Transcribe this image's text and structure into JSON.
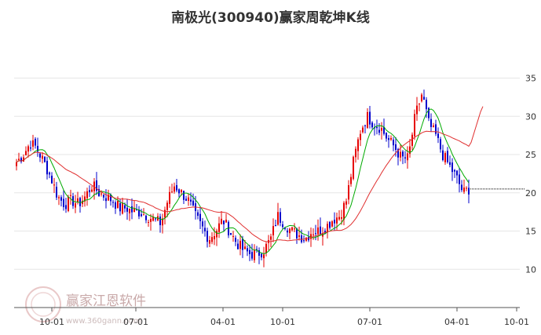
{
  "title": "南极光(300940)赢家周乾坤K线",
  "watermark": {
    "name": "赢家江恩软件",
    "url": "www.360gann.com"
  },
  "colors": {
    "up": "#e60000",
    "down": "#0000cc",
    "ma_short": "#00aa00",
    "ma_long": "#e03030",
    "grid": "#e6e6e6",
    "last_price_line": "#000000"
  },
  "chart_data": {
    "type": "candlestick",
    "title": "南极光(300940)赢家周乾坤K线",
    "ylim": [
      5,
      37
    ],
    "y_ticks": [
      10,
      15,
      20,
      25,
      30,
      35
    ],
    "x_ticks": [
      "10-01",
      "07-01",
      "04-01",
      "10-01",
      "07-01",
      "04-01",
      "10-01"
    ],
    "grid": true,
    "last_price": 20.5,
    "close_path": [
      [
        0,
        24
      ],
      [
        5,
        25
      ],
      [
        10,
        26.5
      ],
      [
        14,
        26
      ],
      [
        20,
        24
      ],
      [
        25,
        22
      ],
      [
        30,
        19.5
      ],
      [
        35,
        18.5
      ],
      [
        40,
        19
      ],
      [
        45,
        18.5
      ],
      [
        50,
        19.5
      ],
      [
        55,
        21
      ],
      [
        60,
        20
      ],
      [
        65,
        19.5
      ],
      [
        70,
        19
      ],
      [
        75,
        18
      ],
      [
        80,
        18
      ],
      [
        85,
        17.5
      ],
      [
        90,
        17.5
      ],
      [
        95,
        17
      ],
      [
        100,
        16.5
      ],
      [
        105,
        16
      ],
      [
        110,
        19
      ],
      [
        115,
        21
      ],
      [
        120,
        20
      ],
      [
        125,
        19
      ],
      [
        130,
        17
      ],
      [
        135,
        15.5
      ],
      [
        140,
        14
      ],
      [
        145,
        15
      ],
      [
        150,
        16.5
      ],
      [
        155,
        15
      ],
      [
        160,
        13.5
      ],
      [
        165,
        12.5
      ],
      [
        170,
        12
      ],
      [
        175,
        12
      ],
      [
        180,
        12.5
      ],
      [
        185,
        14
      ],
      [
        190,
        17
      ],
      [
        195,
        16
      ],
      [
        200,
        15
      ],
      [
        205,
        14.5
      ],
      [
        210,
        14
      ],
      [
        215,
        15
      ],
      [
        220,
        15
      ],
      [
        225,
        15.5
      ],
      [
        230,
        16.5
      ],
      [
        235,
        17
      ],
      [
        240,
        19
      ],
      [
        245,
        24
      ],
      [
        250,
        28
      ],
      [
        255,
        30
      ],
      [
        260,
        29
      ],
      [
        265,
        28.5
      ],
      [
        270,
        27
      ],
      [
        275,
        26
      ],
      [
        280,
        24.5
      ],
      [
        285,
        24.5
      ],
      [
        290,
        30
      ],
      [
        295,
        33
      ],
      [
        300,
        29
      ],
      [
        305,
        27.5
      ],
      [
        310,
        25
      ],
      [
        315,
        23.5
      ],
      [
        320,
        22
      ],
      [
        325,
        20
      ],
      [
        329,
        20.5
      ]
    ]
  }
}
